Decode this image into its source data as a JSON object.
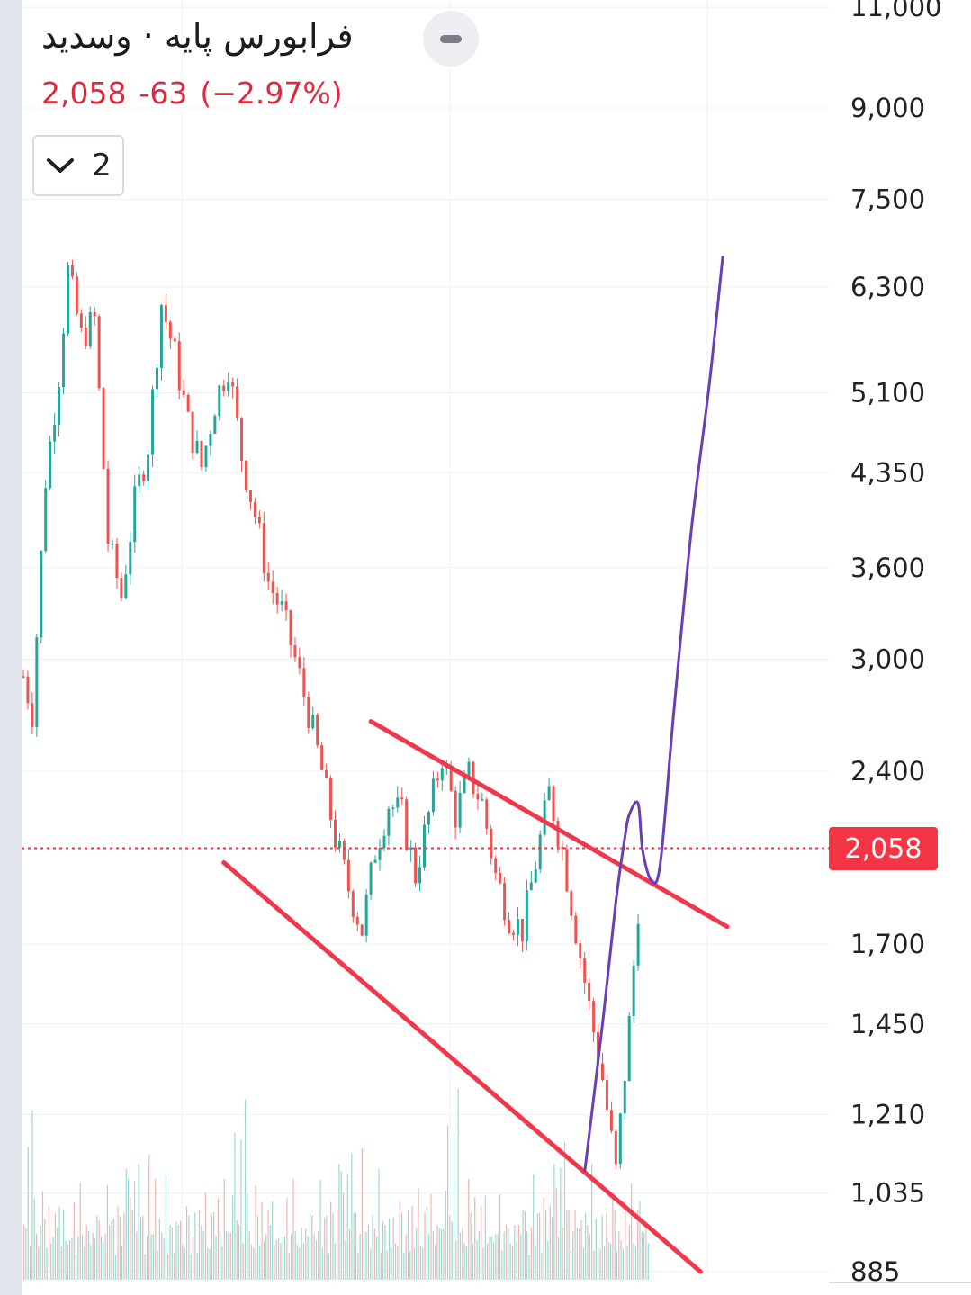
{
  "header": {
    "symbol_title": "فرابورس پایه · وسدید",
    "price": "2,058",
    "change": "-63",
    "change_pct": "(−2.97%)",
    "indicator_count": "2"
  },
  "colors": {
    "up": "#26a69a",
    "down": "#ef5350",
    "trendline": "#f0384d",
    "projection": "#6a3fb5",
    "last_price": "#f23645"
  },
  "icons": [
    "collapse-icon",
    "chevron-down-icon"
  ],
  "chart_data": {
    "type": "candlestick",
    "y_scale": "log",
    "y_ticks": [
      "11,000",
      "9,000",
      "7,500",
      "6,300",
      "5,100",
      "4,350",
      "3,600",
      "3,000",
      "2,400",
      "2,058",
      "1,700",
      "1,450",
      "1,210",
      "1,035",
      "885"
    ],
    "last_price": "2,058",
    "ylim": [
      885,
      11000
    ],
    "legend": "none",
    "grid": true,
    "price_path": [
      [
        0,
        2900
      ],
      [
        2,
        2700
      ],
      [
        5,
        4300
      ],
      [
        8,
        5300
      ],
      [
        10,
        6500
      ],
      [
        13,
        5700
      ],
      [
        16,
        5900
      ],
      [
        19,
        3800
      ],
      [
        22,
        3400
      ],
      [
        25,
        4100
      ],
      [
        28,
        4600
      ],
      [
        31,
        6100
      ],
      [
        34,
        5500
      ],
      [
        37,
        4800
      ],
      [
        40,
        4400
      ],
      [
        43,
        5000
      ],
      [
        46,
        5400
      ],
      [
        49,
        4500
      ],
      [
        52,
        4000
      ],
      [
        55,
        3500
      ],
      [
        58,
        3300
      ],
      [
        61,
        3000
      ],
      [
        64,
        2700
      ],
      [
        67,
        2400
      ],
      [
        70,
        2100
      ],
      [
        73,
        1900
      ],
      [
        76,
        1750
      ],
      [
        79,
        2050
      ],
      [
        82,
        2250
      ],
      [
        85,
        2200
      ],
      [
        88,
        1950
      ],
      [
        91,
        2200
      ],
      [
        94,
        2480
      ],
      [
        97,
        2200
      ],
      [
        100,
        2380
      ],
      [
        103,
        2250
      ],
      [
        106,
        1950
      ],
      [
        109,
        1800
      ],
      [
        112,
        1750
      ],
      [
        115,
        2000
      ],
      [
        118,
        2300
      ],
      [
        121,
        2050
      ],
      [
        124,
        1750
      ],
      [
        127,
        1500
      ],
      [
        130,
        1300
      ],
      [
        133,
        1080
      ],
      [
        136,
        1450
      ],
      [
        139,
        2058
      ]
    ],
    "volume_levels": [
      0.3,
      0.2,
      0.45,
      0.15,
      0.7,
      0.25,
      0.2,
      0.1,
      0.15,
      0.4,
      0.2,
      0.15,
      0.3,
      0.1,
      0.2,
      0.25,
      0.15,
      0.35,
      0.1,
      0.2,
      0.15,
      0.1,
      0.2,
      0.15,
      0.25,
      0.1,
      0.15,
      0.3,
      0.2,
      0.1,
      0.15,
      0.2,
      0.1,
      0.25,
      0.15,
      0.2,
      0.3,
      0.15,
      0.1,
      0.2,
      0.35,
      0.15,
      0.25,
      0.2,
      0.1,
      0.3,
      0.2,
      0.15,
      0.25,
      0.35,
      0.5
    ],
    "trendlines": [
      {
        "from": [
          78,
          2650
        ],
        "to": [
          158,
          1760
        ]
      },
      {
        "from": [
          45,
          2000
        ],
        "to": [
          152,
          885
        ]
      }
    ],
    "projection_path": [
      [
        126,
        1080
      ],
      [
        130,
        1450
      ],
      [
        133,
        1850
      ],
      [
        135,
        2100
      ],
      [
        136,
        2200
      ],
      [
        138,
        2250
      ],
      [
        139,
        2050
      ],
      [
        141,
        1930
      ],
      [
        143,
        2000
      ],
      [
        146,
        2700
      ],
      [
        150,
        3900
      ],
      [
        154,
        5200
      ],
      [
        157,
        6700
      ]
    ]
  }
}
